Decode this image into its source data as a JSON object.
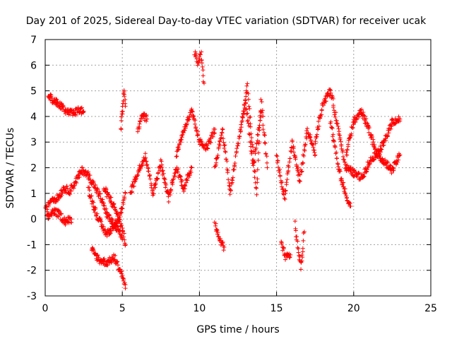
{
  "colors": {
    "series": "#ff0000",
    "grid": "#a0a0a0",
    "axis": "#000000",
    "background": "#ffffff"
  },
  "chart_data": {
    "type": "scatter",
    "title": "Day 201 of 2025, Sidereal Day-to-day VTEC variation (SDTVAR) for receiver ucak",
    "xlabel": "GPS time / hours",
    "ylabel": "SDTVAR / TECUs",
    "xlim": [
      0,
      25
    ],
    "ylim": [
      -3,
      7
    ],
    "xticks": [
      0,
      5,
      10,
      15,
      20,
      25
    ],
    "yticks": [
      -3,
      -2,
      -1,
      0,
      1,
      2,
      3,
      4,
      5,
      6,
      7
    ],
    "grid": true,
    "marker": "+",
    "series": [
      {
        "name": "SDTVAR ucak",
        "description_segments": [
          {
            "x": [
              0.2,
              0.6,
              1.0,
              1.4,
              1.8,
              2.2,
              2.5
            ],
            "y": [
              4.8,
              4.6,
              4.4,
              4.2,
              4.1,
              4.25,
              4.2
            ]
          },
          {
            "x": [
              0.0,
              0.4,
              0.8,
              1.2,
              1.6,
              2.0,
              2.4,
              2.8,
              3.2,
              3.6,
              4.0,
              4.4,
              4.8,
              5.0
            ],
            "y": [
              0.3,
              0.8,
              0.8,
              1.2,
              1.1,
              1.5,
              1.9,
              1.7,
              1.3,
              0.8,
              0.2,
              -0.2,
              -0.5,
              -0.8
            ]
          },
          {
            "x": [
              0.1,
              0.5,
              0.9,
              1.3,
              1.7
            ],
            "y": [
              0.0,
              0.3,
              0.2,
              -0.1,
              0.0
            ]
          },
          {
            "x": [
              2.8,
              3.2,
              3.6,
              4.0,
              4.4,
              4.8,
              5.0,
              5.2
            ],
            "y": [
              1.2,
              0.4,
              -0.2,
              -0.6,
              -0.3,
              0.1,
              0.5,
              1.0
            ]
          },
          {
            "x": [
              3.0,
              3.5,
              4.0,
              4.5,
              5.0,
              5.2
            ],
            "y": [
              -1.2,
              -1.6,
              -1.7,
              -1.5,
              -2.2,
              -2.7
            ]
          },
          {
            "x": [
              3.8,
              4.2,
              4.6,
              5.0,
              5.2
            ],
            "y": [
              1.2,
              0.8,
              0.3,
              -0.4,
              -1.0
            ]
          },
          {
            "x": [
              4.9,
              5.0,
              5.1,
              5.2
            ],
            "y": [
              3.5,
              4.2,
              5.0,
              4.4
            ]
          },
          {
            "x": [
              5.5,
              6.0,
              6.5,
              7.0,
              7.5,
              8.0,
              8.5,
              9.0,
              9.5
            ],
            "y": [
              1.0,
              1.8,
              2.5,
              1.0,
              2.2,
              0.8,
              2.0,
              1.2,
              2.0
            ]
          },
          {
            "x": [
              6.0,
              6.3,
              6.6
            ],
            "y": [
              3.5,
              4.1,
              3.9
            ]
          },
          {
            "x": [
              8.5,
              9.0,
              9.5,
              10.0,
              10.5,
              11.0
            ],
            "y": [
              2.5,
              3.5,
              4.2,
              3.0,
              2.8,
              3.5
            ]
          },
          {
            "x": [
              9.7,
              9.9,
              10.1,
              10.3
            ],
            "y": [
              6.5,
              6.0,
              6.4,
              5.3
            ]
          },
          {
            "x": [
              11.0,
              11.5,
              12.0,
              12.5,
              13.0,
              13.5,
              14.0
            ],
            "y": [
              2.0,
              3.5,
              1.0,
              3.0,
              4.5,
              2.0,
              4.2
            ]
          },
          {
            "x": [
              11.0,
              11.3,
              11.6
            ],
            "y": [
              -0.2,
              -0.8,
              -1.1
            ]
          },
          {
            "x": [
              12.8,
              13.1,
              13.4,
              13.7,
              14.0,
              14.4
            ],
            "y": [
              4.0,
              5.2,
              3.0,
              1.0,
              4.6,
              2.0
            ]
          },
          {
            "x": [
              15.0,
              15.5,
              16.0,
              16.5,
              17.0,
              17.5
            ],
            "y": [
              2.5,
              0.8,
              3.0,
              1.5,
              3.5,
              2.5
            ]
          },
          {
            "x": [
              15.3,
              15.6,
              15.9
            ],
            "y": [
              -1.0,
              -1.5,
              -1.4
            ]
          },
          {
            "x": [
              16.2,
              16.4,
              16.6,
              16.8
            ],
            "y": [
              -0.2,
              -1.2,
              -1.9,
              -0.5
            ]
          },
          {
            "x": [
              17.5,
              18.0,
              18.5,
              19.0,
              19.5
            ],
            "y": [
              3.0,
              4.5,
              5.0,
              3.5,
              2.0
            ]
          },
          {
            "x": [
              18.5,
              19.0,
              19.5,
              19.8
            ],
            "y": [
              3.8,
              2.0,
              0.9,
              0.5
            ]
          },
          {
            "x": [
              19.5,
              20.0,
              20.5,
              21.0,
              21.5,
              22.0,
              22.5,
              23.0
            ],
            "y": [
              2.5,
              3.8,
              4.2,
              3.5,
              2.5,
              3.0,
              3.8,
              3.9
            ]
          },
          {
            "x": [
              19.5,
              20.0,
              20.5,
              21.0,
              21.5,
              22.0,
              22.5,
              23.0
            ],
            "y": [
              2.0,
              1.8,
              1.6,
              2.2,
              2.6,
              2.2,
              1.9,
              2.5
            ]
          }
        ]
      }
    ]
  }
}
